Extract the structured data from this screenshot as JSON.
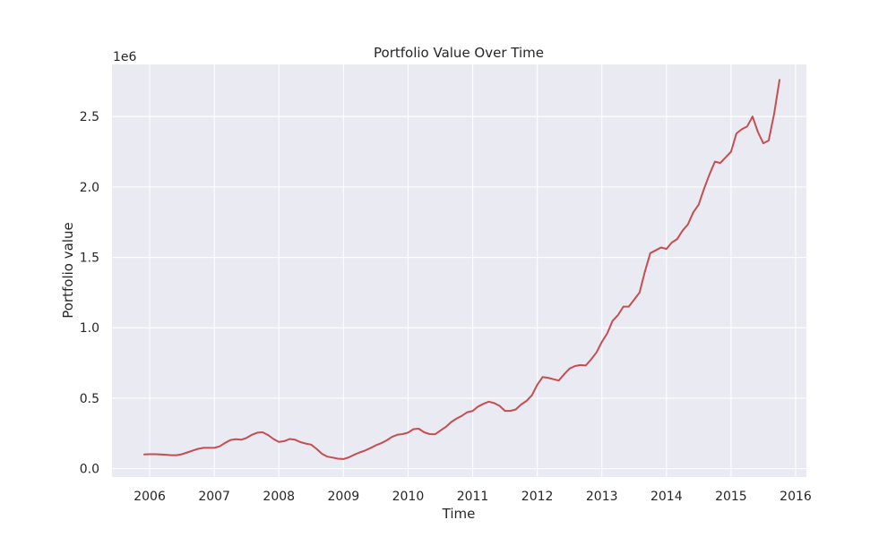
{
  "chart_data": {
    "type": "line",
    "title": "Portfolio Value Over Time",
    "xlabel": "Time",
    "ylabel": "Portfolio value",
    "y_offset_label": "1e6",
    "xlim": [
      "2005-06",
      "2016-03"
    ],
    "ylim": [
      -0.06,
      2.87
    ],
    "x_ticks": [
      "2006",
      "2007",
      "2008",
      "2009",
      "2010",
      "2011",
      "2012",
      "2013",
      "2014",
      "2015",
      "2016"
    ],
    "y_ticks": [
      "0.0",
      "0.5",
      "1.0",
      "1.5",
      "2.0",
      "2.5"
    ],
    "grid": true,
    "colors": {
      "background": "#eaeaf2",
      "grid": "#ffffff",
      "series": "#c44e52"
    },
    "series": [
      {
        "x": [
          "2005-12",
          "2006-01",
          "2006-02",
          "2006-03",
          "2006-04",
          "2006-05",
          "2006-06",
          "2006-07",
          "2006-08",
          "2006-09",
          "2006-10",
          "2006-11",
          "2006-12",
          "2007-01",
          "2007-02",
          "2007-03",
          "2007-04",
          "2007-05",
          "2007-06",
          "2007-07",
          "2007-08",
          "2007-09",
          "2007-10",
          "2007-11",
          "2007-12",
          "2008-01",
          "2008-02",
          "2008-03",
          "2008-04",
          "2008-05",
          "2008-06",
          "2008-07",
          "2008-08",
          "2008-09",
          "2008-10",
          "2008-11",
          "2008-12",
          "2009-01",
          "2009-02",
          "2009-03",
          "2009-04",
          "2009-05",
          "2009-06",
          "2009-07",
          "2009-08",
          "2009-09",
          "2009-10",
          "2009-11",
          "2009-12",
          "2010-01",
          "2010-02",
          "2010-03",
          "2010-04",
          "2010-05",
          "2010-06",
          "2010-07",
          "2010-08",
          "2010-09",
          "2010-10",
          "2010-11",
          "2010-12",
          "2011-01",
          "2011-02",
          "2011-03",
          "2011-04",
          "2011-05",
          "2011-06",
          "2011-07",
          "2011-08",
          "2011-09",
          "2011-10",
          "2011-11",
          "2011-12",
          "2012-01",
          "2012-02",
          "2012-03",
          "2012-04",
          "2012-05",
          "2012-06",
          "2012-07",
          "2012-08",
          "2012-09",
          "2012-10",
          "2012-11",
          "2012-12",
          "2013-01",
          "2013-02",
          "2013-03",
          "2013-04",
          "2013-05",
          "2013-06",
          "2013-07",
          "2013-08",
          "2013-09",
          "2013-10",
          "2013-11",
          "2013-12",
          "2014-01",
          "2014-02",
          "2014-03",
          "2014-04",
          "2014-05",
          "2014-06",
          "2014-07",
          "2014-08",
          "2014-09",
          "2014-10",
          "2014-11",
          "2014-12",
          "2015-01",
          "2015-02",
          "2015-03",
          "2015-04",
          "2015-05",
          "2015-06",
          "2015-07",
          "2015-08",
          "2015-09",
          "2015-10"
        ],
        "values": [
          0.1,
          0.102,
          0.102,
          0.1,
          0.098,
          0.095,
          0.095,
          0.102,
          0.115,
          0.128,
          0.14,
          0.147,
          0.147,
          0.147,
          0.158,
          0.182,
          0.203,
          0.208,
          0.205,
          0.218,
          0.24,
          0.255,
          0.258,
          0.238,
          0.21,
          0.19,
          0.195,
          0.21,
          0.205,
          0.188,
          0.178,
          0.17,
          0.14,
          0.105,
          0.085,
          0.078,
          0.07,
          0.068,
          0.08,
          0.098,
          0.115,
          0.128,
          0.145,
          0.165,
          0.18,
          0.2,
          0.225,
          0.24,
          0.245,
          0.255,
          0.28,
          0.283,
          0.258,
          0.245,
          0.243,
          0.27,
          0.295,
          0.33,
          0.355,
          0.375,
          0.4,
          0.41,
          0.44,
          0.46,
          0.475,
          0.465,
          0.445,
          0.41,
          0.41,
          0.42,
          0.455,
          0.48,
          0.52,
          0.595,
          0.65,
          0.645,
          0.635,
          0.625,
          0.67,
          0.71,
          0.728,
          0.735,
          0.732,
          0.775,
          0.825,
          0.9,
          0.96,
          1.05,
          1.09,
          1.15,
          1.15,
          1.2,
          1.25,
          1.4,
          1.53,
          1.55,
          1.57,
          1.56,
          1.605,
          1.63,
          1.69,
          1.735,
          1.82,
          1.875,
          1.99,
          2.09,
          2.18,
          2.17,
          2.21,
          2.25,
          2.38,
          2.41,
          2.43,
          2.5,
          2.39,
          2.31,
          2.33,
          2.52,
          2.76
        ]
      }
    ]
  }
}
